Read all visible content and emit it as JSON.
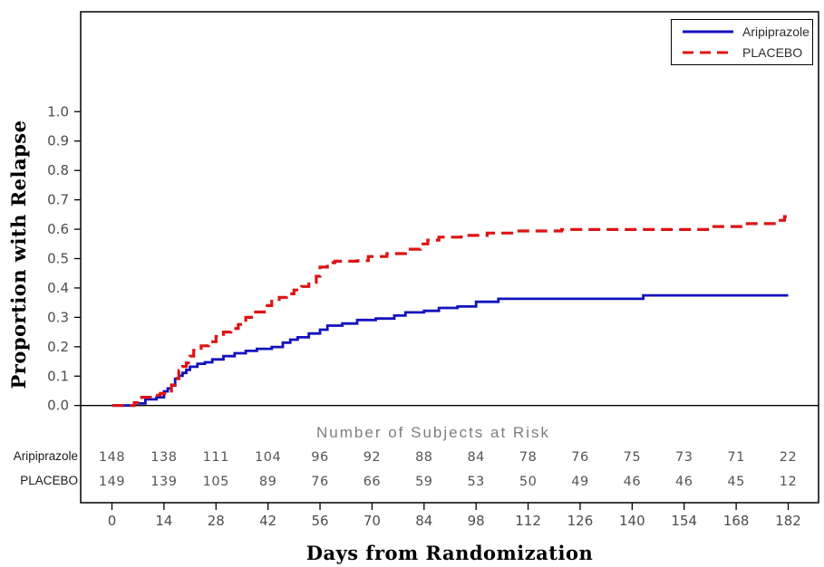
{
  "figure": {
    "y_axis_title": "Proportion with Relapse",
    "x_axis_title": "Days from Randomization",
    "at_risk_title": "Number of Subjects at Risk"
  },
  "legend": {
    "position": "top-right",
    "items": [
      {
        "label": "Aripiprazole",
        "color": "#1212bd",
        "line_style": "solid"
      },
      {
        "label": "PLACEBO",
        "color": "#dc1414",
        "line_style": "dashed"
      }
    ]
  },
  "at_risk": {
    "title": "Number of Subjects at Risk",
    "days": [
      0,
      14,
      28,
      42,
      56,
      70,
      84,
      98,
      112,
      126,
      140,
      154,
      168,
      182
    ],
    "rows": [
      {
        "label": "Aripiprazole",
        "counts": [
          148,
          138,
          111,
          104,
          96,
          92,
          88,
          84,
          78,
          76,
          75,
          73,
          71,
          22
        ]
      },
      {
        "label": "PLACEBO",
        "counts": [
          149,
          139,
          105,
          89,
          76,
          66,
          59,
          53,
          50,
          49,
          46,
          46,
          45,
          12
        ]
      }
    ]
  },
  "colors": {
    "frame": "#000000",
    "tick_text": "#4d4d4d",
    "risk_numbers": "#555555",
    "risk_title_text": "#7e7e7e"
  },
  "chart_data": {
    "type": "line",
    "variant": "kaplan_meier_cumulative_incidence_step",
    "title": "",
    "xlabel": "Days from Randomization",
    "ylabel": "Proportion with Relapse",
    "xlim": [
      0,
      182
    ],
    "ylim": [
      0,
      1.0
    ],
    "x_ticks": [
      0,
      14,
      28,
      42,
      56,
      70,
      84,
      98,
      112,
      126,
      140,
      154,
      168,
      182
    ],
    "y_ticks": [
      0.0,
      0.1,
      0.2,
      0.3,
      0.4,
      0.5,
      0.6,
      0.7,
      0.8,
      0.9,
      1.0
    ],
    "grid": false,
    "baseline_reference_y": 0.0,
    "legend_position": "top-right",
    "series": [
      {
        "name": "Aripiprazole",
        "color": "#1212bd",
        "line_style": "solid",
        "end_day": 182,
        "steps": [
          [
            0,
            0.0
          ],
          [
            6,
            0.007
          ],
          [
            9,
            0.021
          ],
          [
            12,
            0.028
          ],
          [
            14,
            0.048
          ],
          [
            15,
            0.058
          ],
          [
            16,
            0.068
          ],
          [
            17,
            0.091
          ],
          [
            18,
            0.101
          ],
          [
            19,
            0.111
          ],
          [
            20,
            0.121
          ],
          [
            21,
            0.132
          ],
          [
            23,
            0.142
          ],
          [
            25,
            0.147
          ],
          [
            27,
            0.157
          ],
          [
            30,
            0.168
          ],
          [
            33,
            0.178
          ],
          [
            36,
            0.186
          ],
          [
            39,
            0.193
          ],
          [
            43,
            0.199
          ],
          [
            46,
            0.214
          ],
          [
            48,
            0.224
          ],
          [
            50,
            0.232
          ],
          [
            53,
            0.245
          ],
          [
            56,
            0.258
          ],
          [
            58,
            0.272
          ],
          [
            62,
            0.279
          ],
          [
            66,
            0.291
          ],
          [
            71,
            0.296
          ],
          [
            76,
            0.306
          ],
          [
            79,
            0.317
          ],
          [
            84,
            0.322
          ],
          [
            88,
            0.332
          ],
          [
            93,
            0.337
          ],
          [
            98,
            0.353
          ],
          [
            104,
            0.363
          ],
          [
            143,
            0.375
          ]
        ]
      },
      {
        "name": "PLACEBO",
        "color": "#dc1414",
        "line_style": "dashed",
        "end_day": 182,
        "steps": [
          [
            0,
            0.0
          ],
          [
            6,
            0.01
          ],
          [
            8,
            0.028
          ],
          [
            11,
            0.035
          ],
          [
            13,
            0.041
          ],
          [
            15,
            0.049
          ],
          [
            16,
            0.07
          ],
          [
            17,
            0.092
          ],
          [
            18,
            0.119
          ],
          [
            19,
            0.133
          ],
          [
            20,
            0.145
          ],
          [
            21,
            0.168
          ],
          [
            22,
            0.188
          ],
          [
            24,
            0.203
          ],
          [
            26,
            0.217
          ],
          [
            28,
            0.235
          ],
          [
            30,
            0.25
          ],
          [
            32,
            0.262
          ],
          [
            34,
            0.276
          ],
          [
            36,
            0.3
          ],
          [
            38,
            0.318
          ],
          [
            41,
            0.34
          ],
          [
            43,
            0.355
          ],
          [
            45,
            0.368
          ],
          [
            47,
            0.38
          ],
          [
            49,
            0.393
          ],
          [
            51,
            0.405
          ],
          [
            53,
            0.419
          ],
          [
            55,
            0.44
          ],
          [
            56,
            0.471
          ],
          [
            58,
            0.486
          ],
          [
            60,
            0.491
          ],
          [
            66,
            0.493
          ],
          [
            69,
            0.507
          ],
          [
            74,
            0.517
          ],
          [
            79,
            0.532
          ],
          [
            83,
            0.55
          ],
          [
            85,
            0.563
          ],
          [
            88,
            0.573
          ],
          [
            94,
            0.579
          ],
          [
            101,
            0.587
          ],
          [
            109,
            0.594
          ],
          [
            121,
            0.599
          ],
          [
            161,
            0.609
          ],
          [
            171,
            0.619
          ],
          [
            179,
            0.63
          ],
          [
            181,
            0.643
          ]
        ]
      }
    ]
  }
}
